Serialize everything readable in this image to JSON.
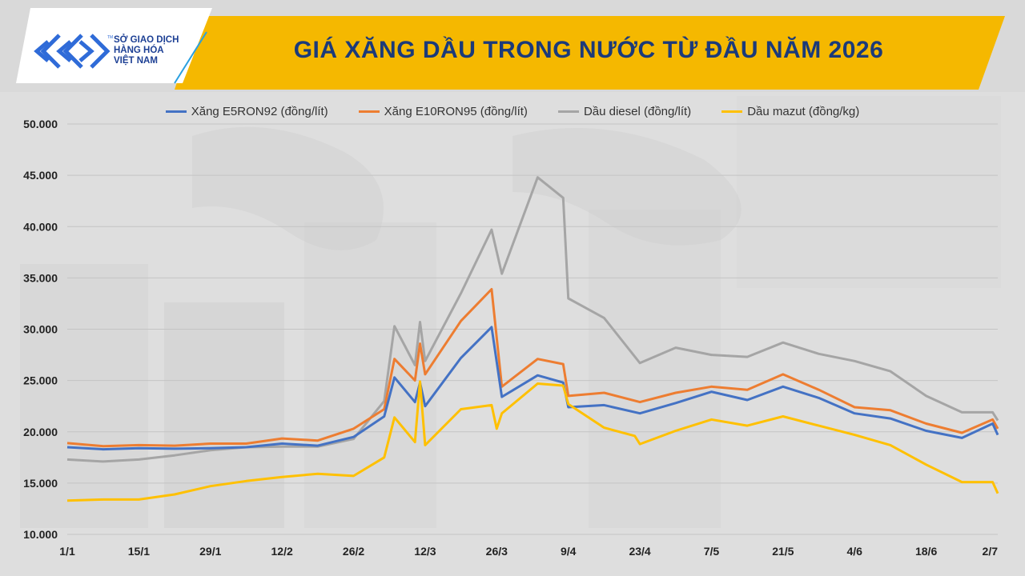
{
  "header": {
    "title": "GIÁ XĂNG DẦU TRONG NƯỚC TỪ ĐẦU NĂM 2026",
    "logo_lines": [
      "SỞ GIAO DỊCH",
      "HÀNG HÓA",
      "VIỆT NAM"
    ],
    "logo_icon": "mxv-chevron-logo"
  },
  "colors": {
    "header_band": "#f5b800",
    "header_panel": "#ffffff",
    "title_text": "#1b3a7a",
    "logo_blue": "#2f6bd8",
    "background": "#d9d9d9"
  },
  "chart_data": {
    "type": "line",
    "title": "",
    "xlabel": "",
    "ylabel": "",
    "ylim": [
      10000,
      50000
    ],
    "yticks": [
      10000,
      15000,
      20000,
      25000,
      30000,
      35000,
      40000,
      45000,
      50000
    ],
    "ytick_labels": [
      "10.000",
      "15.000",
      "20.000",
      "25.000",
      "30.000",
      "35.000",
      "40.000",
      "45.000",
      "50.000"
    ],
    "xlim": [
      "2026-01-01",
      "2026-07-02"
    ],
    "xticks": [
      "2026-01-01",
      "2026-01-15",
      "2026-01-29",
      "2026-02-12",
      "2026-02-26",
      "2026-03-12",
      "2026-03-26",
      "2026-04-09",
      "2026-04-23",
      "2026-05-07",
      "2026-05-21",
      "2026-06-04",
      "2026-06-18",
      "2026-07-02"
    ],
    "xtick_labels": [
      "1/1",
      "15/1",
      "29/1",
      "12/2",
      "26/2",
      "12/3",
      "26/3",
      "9/4",
      "23/4",
      "7/5",
      "21/5",
      "4/6",
      "18/6",
      "2/7"
    ],
    "grid": true,
    "legend_position": "top",
    "series": [
      {
        "name": "Xăng E5RON92 (đồng/lít)",
        "color": "#4472c4",
        "points": [
          [
            "2026-01-01",
            18500
          ],
          [
            "2026-01-08",
            18300
          ],
          [
            "2026-01-15",
            18400
          ],
          [
            "2026-01-22",
            18350
          ],
          [
            "2026-01-29",
            18400
          ],
          [
            "2026-02-05",
            18500
          ],
          [
            "2026-02-12",
            18850
          ],
          [
            "2026-02-19",
            18650
          ],
          [
            "2026-02-26",
            19500
          ],
          [
            "2026-03-04",
            21500
          ],
          [
            "2026-03-06",
            25300
          ],
          [
            "2026-03-10",
            22900
          ],
          [
            "2026-03-11",
            24800
          ],
          [
            "2026-03-12",
            22500
          ],
          [
            "2026-03-19",
            27200
          ],
          [
            "2026-03-25",
            30200
          ],
          [
            "2026-03-27",
            23400
          ],
          [
            "2026-04-03",
            25500
          ],
          [
            "2026-04-08",
            24800
          ],
          [
            "2026-04-09",
            22400
          ],
          [
            "2026-04-16",
            22600
          ],
          [
            "2026-04-23",
            21800
          ],
          [
            "2026-04-30",
            22800
          ],
          [
            "2026-05-07",
            23900
          ],
          [
            "2026-05-14",
            23100
          ],
          [
            "2026-05-21",
            24400
          ],
          [
            "2026-05-28",
            23300
          ],
          [
            "2026-06-04",
            21800
          ],
          [
            "2026-06-11",
            21300
          ],
          [
            "2026-06-18",
            20100
          ],
          [
            "2026-06-25",
            19400
          ],
          [
            "2026-07-01",
            20800
          ],
          [
            "2026-07-02",
            19700
          ]
        ]
      },
      {
        "name": "Xăng E10RON95 (đồng/lít)",
        "color": "#ed7d31",
        "points": [
          [
            "2026-01-01",
            18900
          ],
          [
            "2026-01-08",
            18600
          ],
          [
            "2026-01-15",
            18700
          ],
          [
            "2026-01-22",
            18650
          ],
          [
            "2026-01-29",
            18850
          ],
          [
            "2026-02-05",
            18850
          ],
          [
            "2026-02-12",
            19350
          ],
          [
            "2026-02-19",
            19150
          ],
          [
            "2026-02-26",
            20300
          ],
          [
            "2026-03-04",
            22200
          ],
          [
            "2026-03-06",
            27100
          ],
          [
            "2026-03-10",
            25000
          ],
          [
            "2026-03-11",
            28600
          ],
          [
            "2026-03-12",
            25600
          ],
          [
            "2026-03-19",
            30800
          ],
          [
            "2026-03-25",
            33900
          ],
          [
            "2026-03-27",
            24400
          ],
          [
            "2026-04-03",
            27100
          ],
          [
            "2026-04-08",
            26600
          ],
          [
            "2026-04-09",
            23500
          ],
          [
            "2026-04-16",
            23800
          ],
          [
            "2026-04-23",
            22900
          ],
          [
            "2026-04-30",
            23800
          ],
          [
            "2026-05-07",
            24400
          ],
          [
            "2026-05-14",
            24100
          ],
          [
            "2026-05-21",
            25600
          ],
          [
            "2026-05-28",
            24100
          ],
          [
            "2026-06-04",
            22400
          ],
          [
            "2026-06-11",
            22100
          ],
          [
            "2026-06-18",
            20800
          ],
          [
            "2026-06-25",
            19900
          ],
          [
            "2026-07-01",
            21200
          ],
          [
            "2026-07-02",
            20300
          ]
        ]
      },
      {
        "name": "Dầu diesel (đồng/lít)",
        "color": "#a5a5a5",
        "points": [
          [
            "2026-01-01",
            17300
          ],
          [
            "2026-01-08",
            17100
          ],
          [
            "2026-01-15",
            17300
          ],
          [
            "2026-01-22",
            17700
          ],
          [
            "2026-01-29",
            18200
          ],
          [
            "2026-02-05",
            18500
          ],
          [
            "2026-02-12",
            18550
          ],
          [
            "2026-02-19",
            18550
          ],
          [
            "2026-02-26",
            19300
          ],
          [
            "2026-03-04",
            23000
          ],
          [
            "2026-03-06",
            30300
          ],
          [
            "2026-03-10",
            26500
          ],
          [
            "2026-03-11",
            30700
          ],
          [
            "2026-03-12",
            26900
          ],
          [
            "2026-03-19",
            33500
          ],
          [
            "2026-03-25",
            39700
          ],
          [
            "2026-03-27",
            35400
          ],
          [
            "2026-04-03",
            44800
          ],
          [
            "2026-04-08",
            42800
          ],
          [
            "2026-04-09",
            33000
          ],
          [
            "2026-04-16",
            31100
          ],
          [
            "2026-04-23",
            26700
          ],
          [
            "2026-04-30",
            28200
          ],
          [
            "2026-05-07",
            27500
          ],
          [
            "2026-05-14",
            27300
          ],
          [
            "2026-05-21",
            28700
          ],
          [
            "2026-05-28",
            27600
          ],
          [
            "2026-06-04",
            26900
          ],
          [
            "2026-06-11",
            25900
          ],
          [
            "2026-06-18",
            23500
          ],
          [
            "2026-06-25",
            21900
          ],
          [
            "2026-07-01",
            21900
          ],
          [
            "2026-07-02",
            21100
          ]
        ]
      },
      {
        "name": "Dầu mazut (đồng/kg)",
        "color": "#ffc000",
        "points": [
          [
            "2026-01-01",
            13300
          ],
          [
            "2026-01-08",
            13400
          ],
          [
            "2026-01-15",
            13400
          ],
          [
            "2026-01-22",
            13900
          ],
          [
            "2026-01-29",
            14700
          ],
          [
            "2026-02-05",
            15200
          ],
          [
            "2026-02-12",
            15600
          ],
          [
            "2026-02-19",
            15900
          ],
          [
            "2026-02-26",
            15700
          ],
          [
            "2026-03-04",
            17500
          ],
          [
            "2026-03-06",
            21400
          ],
          [
            "2026-03-10",
            19000
          ],
          [
            "2026-03-11",
            24900
          ],
          [
            "2026-03-12",
            18700
          ],
          [
            "2026-03-19",
            22200
          ],
          [
            "2026-03-25",
            22600
          ],
          [
            "2026-03-26",
            20300
          ],
          [
            "2026-03-27",
            21800
          ],
          [
            "2026-04-03",
            24700
          ],
          [
            "2026-04-08",
            24500
          ],
          [
            "2026-04-09",
            22700
          ],
          [
            "2026-04-16",
            20400
          ],
          [
            "2026-04-22",
            19600
          ],
          [
            "2026-04-23",
            18800
          ],
          [
            "2026-04-30",
            20100
          ],
          [
            "2026-05-07",
            21200
          ],
          [
            "2026-05-14",
            20600
          ],
          [
            "2026-05-21",
            21500
          ],
          [
            "2026-05-28",
            20600
          ],
          [
            "2026-06-04",
            19700
          ],
          [
            "2026-06-11",
            18700
          ],
          [
            "2026-06-18",
            16800
          ],
          [
            "2026-06-25",
            15100
          ],
          [
            "2026-07-01",
            15100
          ],
          [
            "2026-07-02",
            14000
          ]
        ]
      }
    ]
  }
}
